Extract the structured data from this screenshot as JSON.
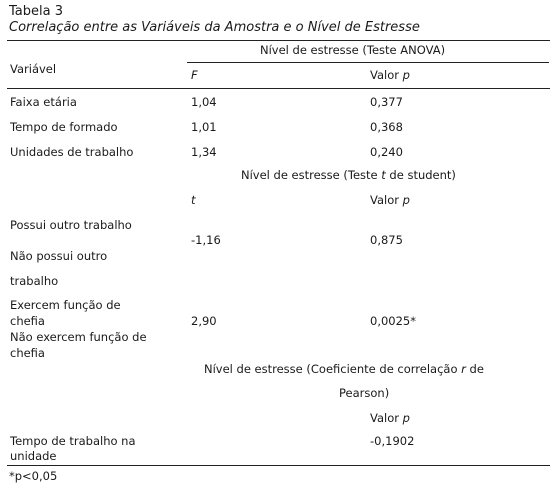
{
  "table": {
    "label": "Tabela 3",
    "caption": "Correlação entre as Variáveis da Amostra e o Nível de Estresse",
    "variable_header": "Variável",
    "anova": {
      "title": "Nível de estresse (Teste ANOVA)",
      "col1": "F",
      "col2_prefix": "Valor ",
      "col2_symbol": "p",
      "rows": [
        {
          "label": "Faixa etária",
          "stat": "1,04",
          "p": "0,377"
        },
        {
          "label": "Tempo de formado",
          "stat": "1,01",
          "p": "0,368"
        },
        {
          "label": "Unidades de trabalho",
          "stat": "1,34",
          "p": "0,240"
        }
      ]
    },
    "ttest": {
      "title_prefix": "Nível de estresse (Teste ",
      "title_symbol": "t",
      "title_suffix": " de student)",
      "col1": "t",
      "col2_prefix": "Valor ",
      "col2_symbol": "p",
      "groups": [
        {
          "label_a": "Possui outro trabalho",
          "label_b1": "Não possui outro",
          "label_b2": "trabalho",
          "stat": "-1,16",
          "p": "0,875"
        },
        {
          "label_a1": "Exercem função de",
          "label_a2": "chefia",
          "label_b1": "Não exercem função de",
          "label_b2": "chefia",
          "stat": "2,90",
          "p": "0,0025*"
        }
      ]
    },
    "pearson": {
      "title_prefix": "Nível de estresse (Coeficiente de correlação ",
      "title_symbol": "r",
      "title_suffix": " de",
      "title_line2": "Pearson)",
      "col2_prefix": "Valor ",
      "col2_symbol": "p",
      "row": {
        "label1": "Tempo de trabalho na",
        "label2": "unidade",
        "p": "-0,1902"
      }
    },
    "footnote": "*p<0,05"
  }
}
